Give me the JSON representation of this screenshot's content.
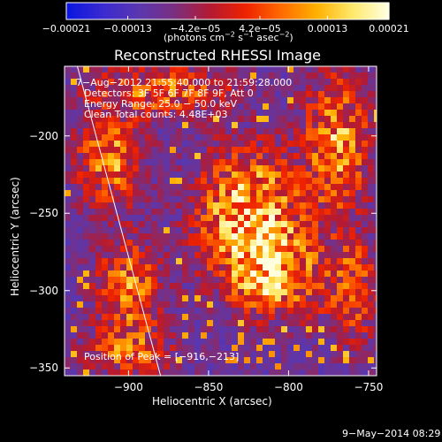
{
  "chart_data": {
    "type": "heatmap",
    "title": "Reconstructed RHESSI Image",
    "xlabel": "Heliocentric X (arcsec)",
    "ylabel": "Heliocentric Y (arcsec)",
    "xlim": [
      -940,
      -745
    ],
    "ylim": [
      -355,
      -155
    ],
    "x_ticks": [
      -900,
      -850,
      -800,
      -750
    ],
    "x_tick_labels": [
      "−900",
      "−850",
      "−800",
      "−750"
    ],
    "y_ticks": [
      -350,
      -300,
      -250,
      -200
    ],
    "y_tick_labels": [
      "−350",
      "−300",
      "−250",
      "−200"
    ],
    "colorbar": {
      "range": [
        -0.00021,
        0.00021
      ],
      "ticks": [
        -0.00021,
        -0.00013,
        -4.2e-05,
        4.2e-05,
        0.00013,
        0.00021
      ],
      "tick_labels": [
        "−0.00021",
        "−0.00013",
        "−4.2e−05",
        "4.2e−05",
        "0.00013",
        "0.00021"
      ],
      "units_prefix": "(photons cm",
      "units_exp1": "−2",
      "units_mid": " s",
      "units_exp2": "−1",
      "units_mid2": " asec",
      "units_exp3": "−2",
      "units_suffix": ")",
      "colormap": [
        "#0a16e0",
        "#3a2ad0",
        "#5a37b0",
        "#7a2f80",
        "#b31a33",
        "#ee2200",
        "#ff6a00",
        "#ffb000",
        "#ffe86a",
        "#ffffe0"
      ]
    },
    "annotations": {
      "time_range": "7−Aug−2012 21:55:40.000 to 21:59:28.000",
      "detectors": "Detectors: 3F 5F 6F 7F 8F 9F, Att 0",
      "energy_range": "Energy Range: 25.0 − 50.0 keV",
      "clean": "Clean    Total counts: 4.48E+03",
      "peak": "Position of Peak = [−916,−213]"
    },
    "peak_position": [
      -916,
      -213
    ],
    "limb_line": {
      "x": [
        -932,
        -880
      ],
      "y": [
        -155,
        -355
      ]
    },
    "hot_regions": [
      {
        "x": -825,
        "y": -250,
        "sigma_x": 22,
        "sigma_y": 28,
        "intensity": 1.0
      },
      {
        "x": -808,
        "y": -290,
        "sigma_x": 20,
        "sigma_y": 18,
        "intensity": 0.85
      },
      {
        "x": -770,
        "y": -205,
        "sigma_x": 14,
        "sigma_y": 30,
        "intensity": 0.8
      },
      {
        "x": -900,
        "y": -300,
        "sigma_x": 14,
        "sigma_y": 22,
        "intensity": 0.7
      },
      {
        "x": -912,
        "y": -215,
        "sigma_x": 14,
        "sigma_y": 20,
        "intensity": 0.75
      },
      {
        "x": -880,
        "y": -170,
        "sigma_x": 30,
        "sigma_y": 12,
        "intensity": 0.6
      },
      {
        "x": -760,
        "y": -300,
        "sigma_x": 12,
        "sigma_y": 25,
        "intensity": 0.55
      },
      {
        "x": -900,
        "y": -340,
        "sigma_x": 20,
        "sigma_y": 10,
        "intensity": 0.5
      }
    ]
  },
  "footer": {
    "date_stamp": "9−May−2014 08:29"
  }
}
